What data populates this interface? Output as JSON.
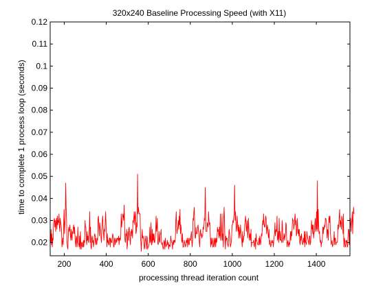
{
  "chart_data": {
    "type": "line",
    "title": "320x240 Baseline Processing Speed (with X11)",
    "xlabel": "processing thread iteration count",
    "ylabel": "time to complete 1 process loop (seconds)",
    "xlim": [
      133,
      1560
    ],
    "ylim": [
      0.014,
      0.12
    ],
    "x_ticks": [
      200,
      400,
      600,
      800,
      1000,
      1200,
      1400
    ],
    "y_ticks": [
      0.02,
      0.03,
      0.04,
      0.05,
      0.06,
      0.07,
      0.08,
      0.09,
      0.1,
      0.11,
      0.12
    ],
    "grid": false,
    "legend": "none",
    "series": [
      {
        "color": "#ff0000",
        "x_start": 133,
        "x_step": 2,
        "values": [
          0.021,
          0.02,
          0.026,
          0.019,
          0.024,
          0.018,
          0.022,
          0.021,
          0.029,
          0.03,
          0.031,
          0.027,
          0.03,
          0.025,
          0.029,
          0.031,
          0.026,
          0.032,
          0.028,
          0.03,
          0.029,
          0.033,
          0.027,
          0.025,
          0.031,
          0.029,
          0.028,
          0.026,
          0.018,
          0.02,
          0.022,
          0.019,
          0.028,
          0.035,
          0.024,
          0.028,
          0.031,
          0.047,
          0.036,
          0.03,
          0.02,
          0.018,
          0.017,
          0.022,
          0.027,
          0.025,
          0.026,
          0.028,
          0.023,
          0.021,
          0.026,
          0.023,
          0.021,
          0.025,
          0.024,
          0.027,
          0.028,
          0.024,
          0.027,
          0.023,
          0.02,
          0.018,
          0.023,
          0.022,
          0.018,
          0.021,
          0.027,
          0.02,
          0.019,
          0.018,
          0.023,
          0.017,
          0.025,
          0.019,
          0.017,
          0.02,
          0.02,
          0.018,
          0.018,
          0.021,
          0.018,
          0.021,
          0.02,
          0.03,
          0.027,
          0.027,
          0.021,
          0.019,
          0.025,
          0.021,
          0.023,
          0.02,
          0.023,
          0.026,
          0.034,
          0.02,
          0.027,
          0.018,
          0.017,
          0.022,
          0.023,
          0.02,
          0.021,
          0.018,
          0.02,
          0.023,
          0.024,
          0.023,
          0.019,
          0.022,
          0.02,
          0.019,
          0.022,
          0.021,
          0.031,
          0.032,
          0.027,
          0.023,
          0.029,
          0.027,
          0.026,
          0.022,
          0.02,
          0.025,
          0.03,
          0.032,
          0.027,
          0.024,
          0.021,
          0.026,
          0.025,
          0.029,
          0.034,
          0.028,
          0.024,
          0.018,
          0.024,
          0.02,
          0.021,
          0.019,
          0.019,
          0.022,
          0.022,
          0.018,
          0.022,
          0.021,
          0.02,
          0.02,
          0.023,
          0.024,
          0.022,
          0.018,
          0.018,
          0.022,
          0.021,
          0.019,
          0.021,
          0.022,
          0.02,
          0.021,
          0.022,
          0.022,
          0.021,
          0.023,
          0.019,
          0.022,
          0.022,
          0.021,
          0.023,
          0.033,
          0.027,
          0.029,
          0.031,
          0.033,
          0.032,
          0.03,
          0.037,
          0.029,
          0.021,
          0.02,
          0.024,
          0.023,
          0.026,
          0.017,
          0.019,
          0.025,
          0.021,
          0.026,
          0.027,
          0.024,
          0.021,
          0.019,
          0.025,
          0.023,
          0.026,
          0.025,
          0.022,
          0.03,
          0.029,
          0.031,
          0.034,
          0.028,
          0.032,
          0.034,
          0.024,
          0.025,
          0.029,
          0.027,
          0.051,
          0.033,
          0.036,
          0.034,
          0.033,
          0.033,
          0.033,
          0.022,
          0.02,
          0.016,
          0.022,
          0.026,
          0.022,
          0.023,
          0.022,
          0.02,
          0.017,
          0.018,
          0.023,
          0.021,
          0.02,
          0.017,
          0.023,
          0.022,
          0.017,
          0.018,
          0.018,
          0.019,
          0.02,
          0.027,
          0.02,
          0.021,
          0.029,
          0.019,
          0.019,
          0.026,
          0.02,
          0.024,
          0.021,
          0.024,
          0.02,
          0.02,
          0.022,
          0.025,
          0.032,
          0.025,
          0.027,
          0.031,
          0.02,
          0.019,
          0.02,
          0.025,
          0.021,
          0.02,
          0.024,
          0.024,
          0.026,
          0.02,
          0.019,
          0.02,
          0.018,
          0.017,
          0.018,
          0.021,
          0.02,
          0.017,
          0.022,
          0.02,
          0.018,
          0.019,
          0.019,
          0.021,
          0.019,
          0.02,
          0.017,
          0.019,
          0.019,
          0.018,
          0.019,
          0.023,
          0.021,
          0.02,
          0.02,
          0.017,
          0.02,
          0.021,
          0.019,
          0.021,
          0.021,
          0.02,
          0.022,
          0.03,
          0.034,
          0.027,
          0.024,
          0.026,
          0.027,
          0.03,
          0.026,
          0.032,
          0.028,
          0.035,
          0.024,
          0.028,
          0.026,
          0.021,
          0.02,
          0.024,
          0.018,
          0.018,
          0.018,
          0.021,
          0.02,
          0.019,
          0.018,
          0.019,
          0.021,
          0.02,
          0.022,
          0.018,
          0.021,
          0.022,
          0.019,
          0.019,
          0.022,
          0.021,
          0.021,
          0.023,
          0.025,
          0.021,
          0.018,
          0.021,
          0.031,
          0.03,
          0.034,
          0.036,
          0.029,
          0.022,
          0.022,
          0.027,
          0.024,
          0.024,
          0.024,
          0.027,
          0.028,
          0.025,
          0.024,
          0.02,
          0.018,
          0.025,
          0.026,
          0.023,
          0.024,
          0.022,
          0.023,
          0.023,
          0.027,
          0.026,
          0.028,
          0.031,
          0.03,
          0.045,
          0.033,
          0.025,
          0.025,
          0.025,
          0.029,
          0.028,
          0.027,
          0.034,
          0.03,
          0.028,
          0.029,
          0.024,
          0.018,
          0.022,
          0.019,
          0.02,
          0.022,
          0.018,
          0.018,
          0.019,
          0.022,
          0.018,
          0.021,
          0.022,
          0.018,
          0.022,
          0.02,
          0.021,
          0.027,
          0.025,
          0.026,
          0.024,
          0.022,
          0.027,
          0.023,
          0.033,
          0.021,
          0.022,
          0.025,
          0.033,
          0.021,
          0.024,
          0.018,
          0.031,
          0.036,
          0.029,
          0.021,
          0.017,
          0.023,
          0.021,
          0.022,
          0.022,
          0.019,
          0.019,
          0.018,
          0.023,
          0.026,
          0.024,
          0.021,
          0.018,
          0.019,
          0.02,
          0.023,
          0.028,
          0.028,
          0.03,
          0.029,
          0.032,
          0.033,
          0.046,
          0.03,
          0.034,
          0.029,
          0.025,
          0.027,
          0.032,
          0.029,
          0.025,
          0.028,
          0.022,
          0.027,
          0.024,
          0.022,
          0.028,
          0.025,
          0.024,
          0.021,
          0.018,
          0.025,
          0.02,
          0.021,
          0.023,
          0.023,
          0.028,
          0.03,
          0.032,
          0.029,
          0.025,
          0.027,
          0.03,
          0.022,
          0.025,
          0.031,
          0.026,
          0.021,
          0.023,
          0.024,
          0.021,
          0.026,
          0.018,
          0.02,
          0.02,
          0.02,
          0.02,
          0.021,
          0.019,
          0.018,
          0.02,
          0.022,
          0.017,
          0.024,
          0.021,
          0.021,
          0.02,
          0.019,
          0.019,
          0.019,
          0.022,
          0.019,
          0.023,
          0.021,
          0.019,
          0.021,
          0.024,
          0.023,
          0.027,
          0.03,
          0.028,
          0.033,
          0.029,
          0.027,
          0.027,
          0.029,
          0.032,
          0.031,
          0.024,
          0.026,
          0.028,
          0.026,
          0.023,
          0.022,
          0.026,
          0.019,
          0.021,
          0.019,
          0.018,
          0.019,
          0.021,
          0.02,
          0.02,
          0.021,
          0.018,
          0.02,
          0.023,
          0.024,
          0.029,
          0.023,
          0.025,
          0.026,
          0.025,
          0.032,
          0.021,
          0.022,
          0.025,
          0.02,
          0.031,
          0.024,
          0.021,
          0.025,
          0.021,
          0.021,
          0.02,
          0.03,
          0.027,
          0.02,
          0.022,
          0.022,
          0.024,
          0.021,
          0.023,
          0.023,
          0.029,
          0.028,
          0.021,
          0.018,
          0.02,
          0.021,
          0.019,
          0.018,
          0.02,
          0.019,
          0.021,
          0.025,
          0.021,
          0.025,
          0.023,
          0.027,
          0.031,
          0.03,
          0.03,
          0.026,
          0.028,
          0.031,
          0.033,
          0.028,
          0.03,
          0.023,
          0.024,
          0.031,
          0.028,
          0.024,
          0.026,
          0.023,
          0.026,
          0.02,
          0.019,
          0.023,
          0.021,
          0.024,
          0.022,
          0.02,
          0.019,
          0.02,
          0.022,
          0.02,
          0.025,
          0.018,
          0.025,
          0.02,
          0.02,
          0.019,
          0.025,
          0.023,
          0.022,
          0.021,
          0.02,
          0.019,
          0.023,
          0.023,
          0.019,
          0.02,
          0.024,
          0.03,
          0.026,
          0.028,
          0.024,
          0.028,
          0.022,
          0.024,
          0.025,
          0.029,
          0.031,
          0.026,
          0.025,
          0.034,
          0.026,
          0.048,
          0.025,
          0.035,
          0.028,
          0.024,
          0.025,
          0.022,
          0.02,
          0.021,
          0.018,
          0.02,
          0.02,
          0.022,
          0.027,
          0.024,
          0.027,
          0.026,
          0.028,
          0.027,
          0.031,
          0.031,
          0.03,
          0.028,
          0.022,
          0.026,
          0.025,
          0.021,
          0.03,
          0.032,
          0.029,
          0.032,
          0.024,
          0.022,
          0.019,
          0.02,
          0.021,
          0.018,
          0.019,
          0.019,
          0.021,
          0.025,
          0.019,
          0.022,
          0.022,
          0.019,
          0.02,
          0.02,
          0.02,
          0.021,
          0.028,
          0.026,
          0.029,
          0.032,
          0.035,
          0.027,
          0.03,
          0.029,
          0.026,
          0.032,
          0.031,
          0.029,
          0.024,
          0.033,
          0.018,
          0.022,
          0.021,
          0.018,
          0.018,
          0.021,
          0.02,
          0.021,
          0.018,
          0.018,
          0.023,
          0.026,
          0.026,
          0.019,
          0.025,
          0.028,
          0.031,
          0.025,
          0.029,
          0.03,
          0.034,
          0.024,
          0.03,
          0.036,
          0.033
        ]
      }
    ]
  }
}
